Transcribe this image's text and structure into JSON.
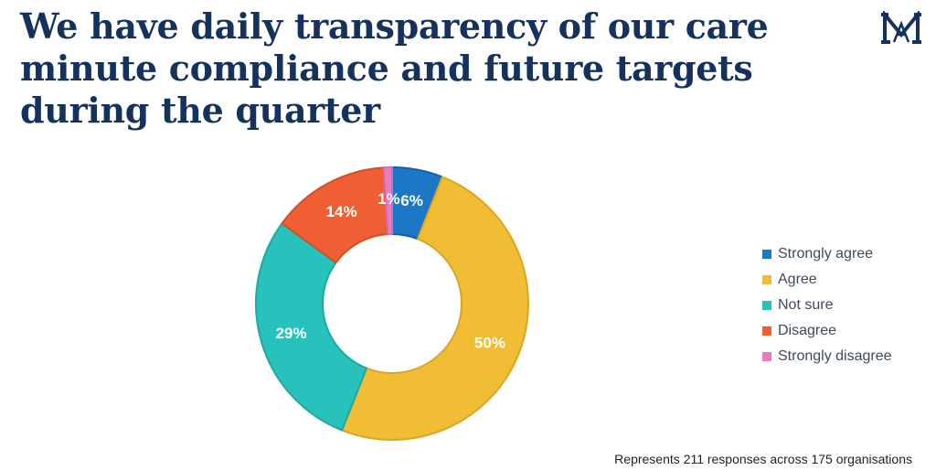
{
  "title_lines": [
    "We have daily transparency of our care",
    "minute compliance and future targets",
    "during the quarter"
  ],
  "logo": {
    "icon": "monogram-logo",
    "color": "#15325c"
  },
  "footnote": "Represents 211 responses across 175 organisations",
  "chart_data": {
    "type": "pie",
    "subtype": "donut",
    "start_angle_deg": 0,
    "direction": "clockwise",
    "legend_position": "right",
    "categories": [
      "Strongly agree",
      "Agree",
      "Not sure",
      "Disagree",
      "Strongly disagree"
    ],
    "values": [
      6,
      50,
      29,
      14,
      1
    ],
    "data_labels": [
      "6%",
      "50%",
      "29%",
      "14%",
      "1%"
    ],
    "colors": [
      "#1d77c7",
      "#f0bd34",
      "#26c2bb",
      "#f05f33",
      "#ea7cc4"
    ],
    "border_colors": [
      "#155fa0",
      "#d9a624",
      "#1ea8a2",
      "#d44e26",
      "#d46aaf"
    ]
  }
}
